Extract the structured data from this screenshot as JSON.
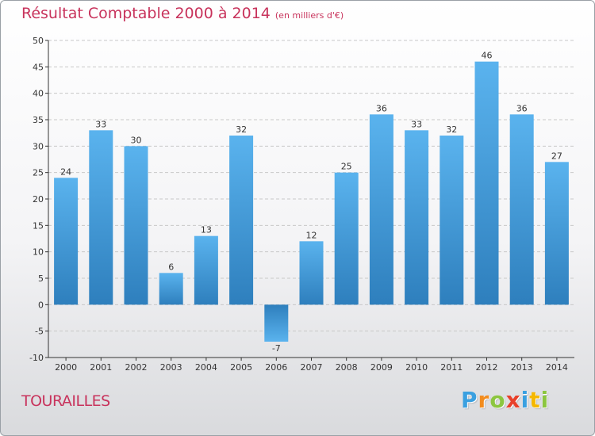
{
  "header": {
    "title": "Résultat Comptable 2000 à 2014",
    "subtitle": "(en milliers d'€)"
  },
  "footer": {
    "place": "TOURAILLES",
    "logo": [
      "P",
      "r",
      "o",
      "x",
      "i",
      "t",
      "i"
    ],
    "logo_colors": [
      "#3aa0e0",
      "#f28c1e",
      "#8cc63f",
      "#e8402a",
      "#3aa0e0",
      "#f5b800",
      "#8cc63f"
    ]
  },
  "chart_data": {
    "type": "bar",
    "title": "Résultat Comptable 2000 à 2014",
    "subtitle": "(en milliers d'€)",
    "categories": [
      "2000",
      "2001",
      "2002",
      "2003",
      "2004",
      "2005",
      "2006",
      "2007",
      "2008",
      "2009",
      "2010",
      "2011",
      "2012",
      "2013",
      "2014"
    ],
    "values": [
      24,
      33,
      30,
      6,
      13,
      32,
      -7,
      12,
      25,
      36,
      33,
      32,
      46,
      36,
      27
    ],
    "ylim": [
      -10,
      50
    ],
    "yticks": [
      -10,
      -5,
      0,
      5,
      10,
      15,
      20,
      25,
      30,
      35,
      40,
      45,
      50
    ],
    "xlabel": "",
    "ylabel": "",
    "grid": true,
    "colors": {
      "bar_top": "#5ab3ee",
      "bar_bottom": "#2e7fbd",
      "axis": "#333333",
      "grid": "#c8c8c8"
    }
  }
}
